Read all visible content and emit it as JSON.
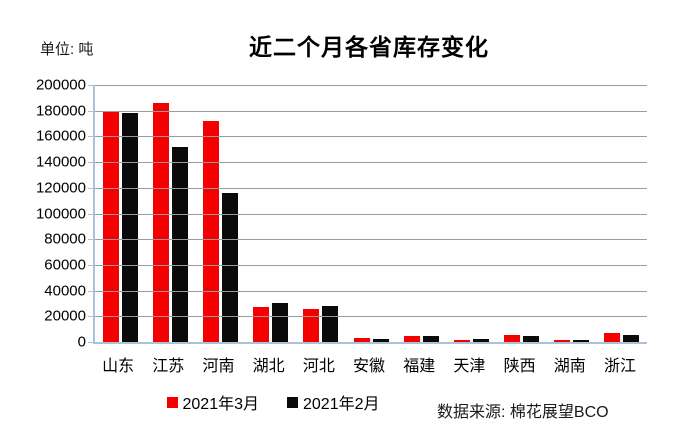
{
  "chart_data": {
    "type": "bar",
    "title": "近二个月各省库存变化",
    "unit_label": "单位: 吨",
    "source_label": "数据来源: 棉花展望BCO",
    "categories": [
      "山东",
      "江苏",
      "河南",
      "湖北",
      "河北",
      "安徽",
      "福建",
      "天津",
      "陕西",
      "湖南",
      "浙江"
    ],
    "series": [
      {
        "name": "2021年3月",
        "color": "#f40000",
        "values": [
          180000,
          186000,
          172000,
          27000,
          26000,
          2900,
          4800,
          1500,
          5300,
          1300,
          7200
        ]
      },
      {
        "name": "2021年2月",
        "color": "#0a0a0a",
        "values": [
          178000,
          152000,
          116000,
          30500,
          28000,
          2400,
          4600,
          2600,
          4700,
          1700,
          5800
        ]
      }
    ],
    "ylim": [
      0,
      200000
    ],
    "y_ticks": [
      200000,
      180000,
      160000,
      140000,
      120000,
      100000,
      80000,
      60000,
      40000,
      20000,
      0
    ],
    "grid": true,
    "legend_position": "bottom"
  },
  "colors": {
    "axis_border": "#a9c2da",
    "gridline": "#9b9b9b",
    "background": "#ffffff",
    "text": "#000000"
  }
}
